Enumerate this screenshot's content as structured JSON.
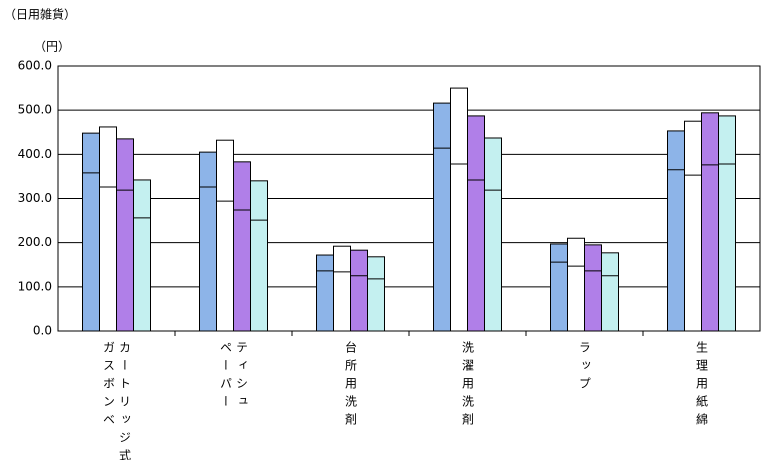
{
  "chart_data": {
    "type": "bar",
    "title": "（日用雑貨）",
    "y_label": "（円）",
    "categories": [
      [
        "カートリッジ式",
        "ガスボンベ"
      ],
      [
        "ティシュ",
        "ペーパー"
      ],
      [
        "台所用洗剤"
      ],
      [
        "洗濯用洗剤"
      ],
      [
        "ラップ"
      ],
      [
        "生理用紙綿"
      ]
    ],
    "series": [
      {
        "color": "#8db4e8",
        "values": [
          448,
          405,
          172,
          516,
          197,
          453
        ],
        "inner_values": [
          358,
          326,
          136,
          414,
          156,
          365
        ]
      },
      {
        "color": "#ffffff",
        "values": [
          462,
          432,
          192,
          550,
          210,
          475
        ],
        "inner_values": [
          326,
          294,
          134,
          378,
          147,
          353
        ]
      },
      {
        "color": "#b07fe8",
        "values": [
          435,
          383,
          183,
          487,
          195,
          494
        ],
        "inner_values": [
          319,
          274,
          125,
          342,
          136,
          376
        ]
      },
      {
        "color": "#c4f0f0",
        "values": [
          342,
          340,
          168,
          437,
          177,
          487
        ],
        "inner_values": [
          256,
          251,
          118,
          319,
          125,
          378
        ]
      }
    ],
    "ylim": [
      0,
      600
    ],
    "yticks": [
      {
        "value": 0,
        "label": "0.0"
      },
      {
        "value": 100,
        "label": "100.0"
      },
      {
        "value": 200,
        "label": "200.0"
      },
      {
        "value": 300,
        "label": "300.0"
      },
      {
        "value": 400,
        "label": "400.0"
      },
      {
        "value": 500,
        "label": "500.0"
      },
      {
        "value": 600,
        "label": "600.0"
      }
    ],
    "grid": true
  }
}
